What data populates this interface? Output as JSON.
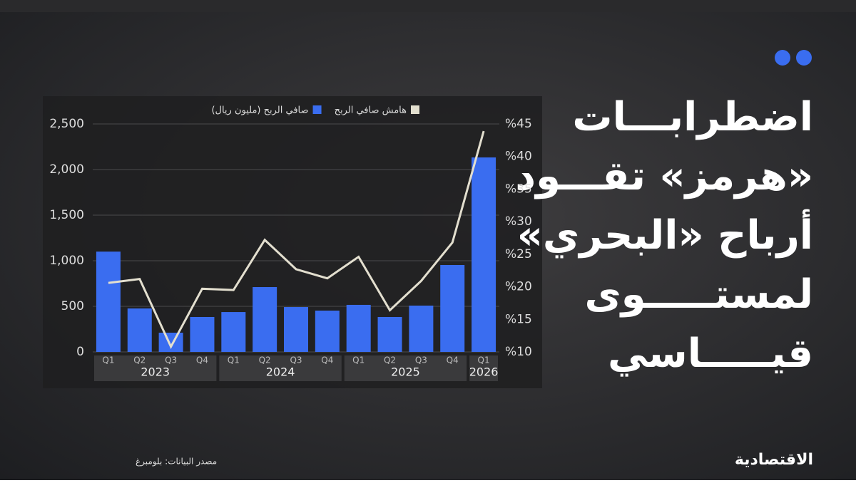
{
  "headline_lines": [
    "اضطرابـــات",
    "«هرمز» تقـــود",
    "أرباح «البحري»",
    "لمستـــــوى",
    "قيـــــاسي"
  ],
  "source": "مصدر البيانات: بلومبرغ",
  "logo": "الاقتصادية",
  "chart_data": {
    "type": "bar",
    "categories": [
      "Q1",
      "Q2",
      "Q3",
      "Q4",
      "Q1",
      "Q2",
      "Q3",
      "Q4",
      "Q1",
      "Q2",
      "Q3",
      "Q4",
      "Q1"
    ],
    "years": [
      "2023",
      "2024",
      "2025",
      "2026"
    ],
    "series": [
      {
        "name": "صافي الربح (مليون ريال)",
        "color": "#3a6df0",
        "values": [
          1100,
          477,
          211,
          383,
          437,
          711,
          492,
          453,
          516,
          383,
          508,
          953,
          2133
        ]
      },
      {
        "name": "هامش صافي الربح",
        "type": "line",
        "axis": "y2",
        "color": "#e3dfcf",
        "values": [
          20.6,
          21.2,
          10.8,
          19.7,
          19.5,
          27.2,
          22.7,
          21.3,
          24.6,
          16.4,
          20.9,
          26.8,
          43.9
        ]
      }
    ],
    "ylim": [
      0,
      2500
    ],
    "yticks": [
      0,
      500,
      {
        "value": 1000,
        "label": "1,000"
      },
      {
        "value": 1500,
        "label": "1,500"
      },
      {
        "value": 2000,
        "label": "2,000"
      },
      {
        "value": 2500,
        "label": "2,500"
      }
    ],
    "y2lim": [
      10,
      45
    ],
    "y2ticks": [
      {
        "value": 10,
        "label": "%10"
      },
      {
        "value": 15,
        "label": "%15"
      },
      {
        "value": 20,
        "label": "%20"
      },
      {
        "value": 25,
        "label": "%25"
      },
      {
        "value": 30,
        "label": "%30"
      },
      {
        "value": 35,
        "label": "%35"
      },
      {
        "value": 40,
        "label": "%40"
      },
      {
        "value": 45,
        "label": "%45"
      }
    ]
  }
}
